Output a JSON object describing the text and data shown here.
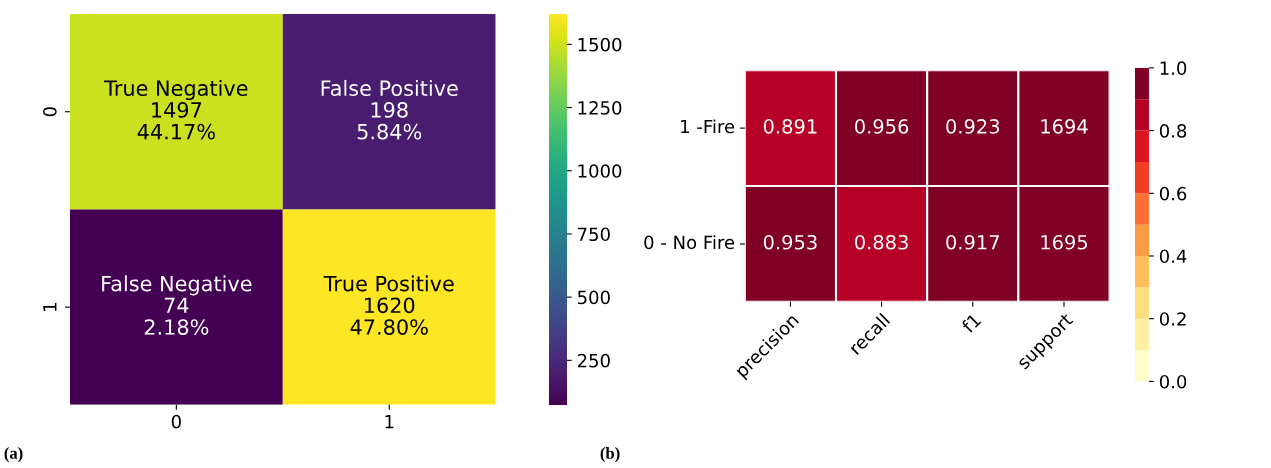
{
  "chart_data": [
    {
      "type": "heatmap",
      "categories": [
        "0",
        "1"
      ],
      "y_categories": [
        "0",
        "1"
      ],
      "cells": [
        [
          1497,
          198
        ],
        [
          74,
          1620
        ]
      ],
      "cell_labels": [
        [
          "True Negative\n1497\n44.17%",
          "False Positive\n198\n5.84%"
        ],
        [
          "False Negative\n74\n2.18%",
          "True Positive\n1620\n47.80%"
        ]
      ],
      "clim": [
        74,
        1620
      ],
      "cticks": [
        250,
        500,
        750,
        1000,
        1250,
        1500
      ],
      "annotations": [
        "(a)"
      ]
    },
    {
      "type": "heatmap",
      "categories": [
        "precision",
        "recall",
        "f1",
        "support"
      ],
      "y_categories": [
        "1 -Fire",
        "0 - No Fire"
      ],
      "cells": [
        [
          0.891,
          0.956,
          0.923,
          1694
        ],
        [
          0.953,
          0.883,
          0.917,
          1695
        ]
      ],
      "data_labels": true,
      "clim": [
        0,
        1
      ],
      "cticks": [
        {
          "value": 0,
          "label": "0.0"
        },
        {
          "value": 0.2,
          "label": "0.2"
        },
        {
          "value": 0.4,
          "label": "0.4"
        },
        {
          "value": 0.6,
          "label": "0.6"
        },
        {
          "value": 0.8,
          "label": "0.8"
        },
        {
          "value": 1,
          "label": "1.0"
        }
      ],
      "annotations": [
        "(b)"
      ]
    }
  ]
}
